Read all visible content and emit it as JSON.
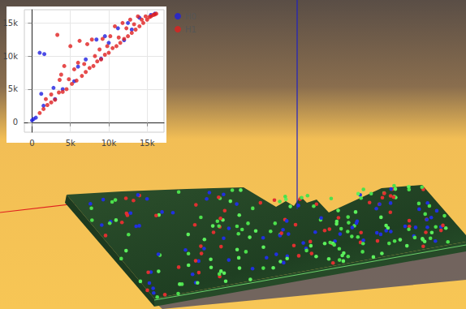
{
  "chart_data": {
    "type": "scatter",
    "series": [
      {
        "name": "H0",
        "color": "#1f1fe0",
        "values": [
          [
            0,
            300
          ],
          [
            200,
            500
          ],
          [
            500,
            700
          ],
          [
            1000,
            10500
          ],
          [
            1600,
            10300
          ],
          [
            1200,
            4300
          ],
          [
            1500,
            2500
          ],
          [
            2800,
            5200
          ],
          [
            4000,
            5000
          ],
          [
            6000,
            8400
          ],
          [
            7000,
            9500
          ],
          [
            8400,
            12500
          ],
          [
            9500,
            13000
          ],
          [
            10000,
            12000
          ],
          [
            11200,
            14200
          ],
          [
            12500,
            15000
          ],
          [
            13000,
            14000
          ],
          [
            14000,
            15800
          ],
          [
            15500,
            16200
          ],
          [
            16000,
            16400
          ],
          [
            3000,
            3500
          ],
          [
            5500,
            6200
          ],
          [
            9000,
            9600
          ],
          [
            12000,
            12400
          ]
        ]
      },
      {
        "name": "H1",
        "color": "#e01f1f",
        "values": [
          [
            1000,
            1400
          ],
          [
            1500,
            2000
          ],
          [
            1800,
            3500
          ],
          [
            2000,
            2600
          ],
          [
            2500,
            3000
          ],
          [
            2500,
            4200
          ],
          [
            3000,
            3400
          ],
          [
            3300,
            13200
          ],
          [
            3500,
            4500
          ],
          [
            3600,
            6400
          ],
          [
            3800,
            7200
          ],
          [
            4000,
            4600
          ],
          [
            4200,
            8500
          ],
          [
            4500,
            5000
          ],
          [
            4800,
            6500
          ],
          [
            5000,
            11500
          ],
          [
            5200,
            5800
          ],
          [
            5500,
            8000
          ],
          [
            5800,
            6300
          ],
          [
            6000,
            9000
          ],
          [
            6200,
            12300
          ],
          [
            6500,
            7000
          ],
          [
            6800,
            8800
          ],
          [
            7000,
            7600
          ],
          [
            7200,
            11800
          ],
          [
            7500,
            8200
          ],
          [
            7800,
            12500
          ],
          [
            8000,
            8500
          ],
          [
            8200,
            10000
          ],
          [
            8500,
            9200
          ],
          [
            8800,
            11000
          ],
          [
            9000,
            9500
          ],
          [
            9200,
            12600
          ],
          [
            9500,
            10200
          ],
          [
            9800,
            11500
          ],
          [
            10000,
            10500
          ],
          [
            10200,
            13000
          ],
          [
            10500,
            11200
          ],
          [
            10800,
            14500
          ],
          [
            11000,
            11500
          ],
          [
            11300,
            12800
          ],
          [
            11500,
            12000
          ],
          [
            11800,
            15000
          ],
          [
            12000,
            12600
          ],
          [
            12300,
            14200
          ],
          [
            12500,
            13000
          ],
          [
            12800,
            15500
          ],
          [
            13000,
            13500
          ],
          [
            13300,
            14800
          ],
          [
            13500,
            14000
          ],
          [
            13800,
            16000
          ],
          [
            14000,
            14500
          ],
          [
            14300,
            15500
          ],
          [
            14500,
            15000
          ],
          [
            14800,
            16000
          ],
          [
            15000,
            15500
          ],
          [
            15300,
            15900
          ],
          [
            15500,
            16000
          ],
          [
            15800,
            16200
          ],
          [
            16000,
            16300
          ],
          [
            16200,
            16400
          ]
        ]
      }
    ],
    "xlim": [
      -1000,
      17200
    ],
    "ylim": [
      -1500,
      17000
    ],
    "xticks": [
      0,
      {
        "value": 5000,
        "label": "5k"
      },
      {
        "value": 10000,
        "label": "10k"
      },
      {
        "value": 15000,
        "label": "15k"
      }
    ],
    "yticks": [
      0,
      {
        "value": 5000,
        "label": "5k"
      },
      {
        "value": 10000,
        "label": "10k"
      },
      {
        "value": 15000,
        "label": "15k"
      }
    ],
    "grid": true,
    "legend": "right",
    "marker": "circle"
  }
}
